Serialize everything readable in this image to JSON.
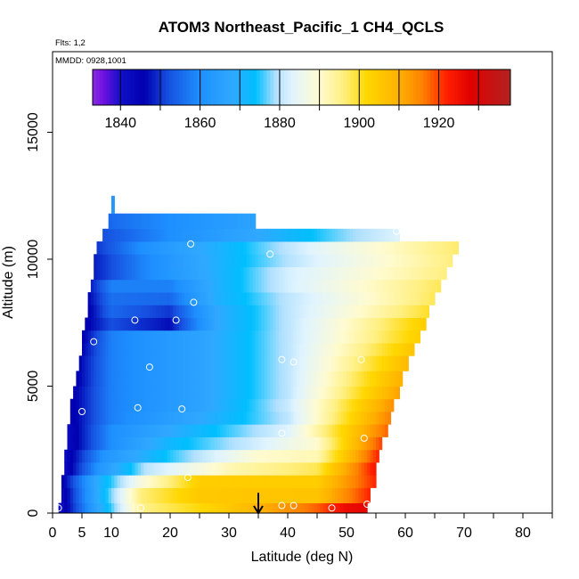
{
  "chart_data": {
    "type": "heatmap",
    "title": "ATOM3 Northeast_Pacific_1 CH4_QCLS",
    "flights_label": "Flts: 1,2",
    "dates_label": "MMDD: 0928,1001",
    "xlabel": "Latitude (deg N)",
    "ylabel": "Altitude (m)",
    "xlim": [
      0,
      85
    ],
    "ylim": [
      0,
      18000
    ],
    "x_ticks": [
      0,
      5,
      10,
      20,
      30,
      40,
      50,
      60,
      70,
      80
    ],
    "y_ticks": [
      0,
      5000,
      10000,
      15000
    ],
    "colorbar": {
      "ticks": [
        1840,
        1860,
        1880,
        1900,
        1920
      ],
      "range": [
        1833,
        1938
      ],
      "bins": [
        1833,
        1840,
        1850,
        1860,
        1870,
        1880,
        1890,
        1900,
        1910,
        1920,
        1930,
        1938
      ]
    },
    "colormap": [
      {
        "v": 1833,
        "c": "#8a2be2"
      },
      {
        "v": 1836,
        "c": "#6a10e0"
      },
      {
        "v": 1840,
        "c": "#1010c8"
      },
      {
        "v": 1846,
        "c": "#0000b0"
      },
      {
        "v": 1852,
        "c": "#1650e0"
      },
      {
        "v": 1860,
        "c": "#1e90ff"
      },
      {
        "v": 1868,
        "c": "#30a8ff"
      },
      {
        "v": 1874,
        "c": "#00bfff"
      },
      {
        "v": 1879,
        "c": "#b0e0ff"
      },
      {
        "v": 1883,
        "c": "#e0f4ff"
      },
      {
        "v": 1890,
        "c": "#fffbd0"
      },
      {
        "v": 1896,
        "c": "#ffef80"
      },
      {
        "v": 1902,
        "c": "#ffd700"
      },
      {
        "v": 1910,
        "c": "#ffb000"
      },
      {
        "v": 1916,
        "c": "#ff8000"
      },
      {
        "v": 1922,
        "c": "#ff2000"
      },
      {
        "v": 1928,
        "c": "#e00000"
      },
      {
        "v": 1938,
        "c": "#b22222"
      }
    ],
    "curtain_bands": [
      {
        "alt_bottom": 0,
        "alt_top": 400,
        "x_start": 1,
        "x_end": 53.5,
        "lat_ctrl": [
          1,
          8,
          15,
          30,
          45,
          50,
          53.5
        ],
        "ctrl": [
          1840,
          1868,
          1895,
          1905,
          1918,
          1926,
          1927
        ]
      },
      {
        "alt_bottom": 400,
        "alt_top": 1000,
        "x_start": 1.5,
        "x_end": 54,
        "lat_ctrl": [
          1.5,
          8,
          15,
          25,
          45,
          54
        ],
        "ctrl": [
          1842,
          1870,
          1896,
          1905,
          1906,
          1922
        ]
      },
      {
        "alt_bottom": 1000,
        "alt_top": 1500,
        "x_start": 1.5,
        "x_end": 55,
        "lat_ctrl": [
          1.5,
          8,
          15,
          25,
          45,
          55
        ],
        "ctrl": [
          1844,
          1870,
          1888,
          1904,
          1904,
          1922
        ]
      },
      {
        "alt_bottom": 1500,
        "alt_top": 2000,
        "x_start": 2,
        "x_end": 55,
        "lat_ctrl": [
          2,
          8,
          16,
          30,
          45,
          55
        ],
        "ctrl": [
          1842,
          1862,
          1880,
          1892,
          1898,
          1924
        ]
      },
      {
        "alt_bottom": 2000,
        "alt_top": 2500,
        "x_start": 2,
        "x_end": 55.5,
        "lat_ctrl": [
          2,
          9,
          20,
          35,
          45,
          55.5
        ],
        "ctrl": [
          1842,
          1862,
          1875,
          1890,
          1892,
          1922
        ]
      },
      {
        "alt_bottom": 2500,
        "alt_top": 3000,
        "x_start": 2.5,
        "x_end": 56,
        "lat_ctrl": [
          2.5,
          10,
          20,
          35,
          45,
          56
        ],
        "ctrl": [
          1842,
          1860,
          1872,
          1882,
          1890,
          1920
        ]
      },
      {
        "alt_bottom": 3000,
        "alt_top": 3500,
        "x_start": 2.5,
        "x_end": 57,
        "lat_ctrl": [
          2.5,
          10,
          25,
          40,
          57
        ],
        "ctrl": [
          1842,
          1860,
          1872,
          1883,
          1918
        ]
      },
      {
        "alt_bottom": 3500,
        "alt_top": 4000,
        "x_start": 3,
        "x_end": 57.5,
        "lat_ctrl": [
          3,
          10,
          25,
          40,
          57.5
        ],
        "ctrl": [
          1844,
          1858,
          1868,
          1880,
          1916
        ]
      },
      {
        "alt_bottom": 4000,
        "alt_top": 4500,
        "x_start": 3,
        "x_end": 58,
        "lat_ctrl": [
          3,
          10,
          25,
          40,
          58
        ],
        "ctrl": [
          1844,
          1858,
          1866,
          1881,
          1914
        ]
      },
      {
        "alt_bottom": 4500,
        "alt_top": 5000,
        "x_start": 3.5,
        "x_end": 59,
        "lat_ctrl": [
          3.5,
          10,
          25,
          40,
          59
        ],
        "ctrl": [
          1845,
          1858,
          1866,
          1880,
          1912
        ]
      },
      {
        "alt_bottom": 5000,
        "alt_top": 5600,
        "x_start": 4,
        "x_end": 59.5,
        "lat_ctrl": [
          4,
          10,
          25,
          40,
          59.5
        ],
        "ctrl": [
          1845,
          1858,
          1866,
          1880,
          1910
        ]
      },
      {
        "alt_bottom": 5600,
        "alt_top": 6200,
        "x_start": 4.5,
        "x_end": 60.5,
        "lat_ctrl": [
          4.5,
          10,
          25,
          40,
          60.5
        ],
        "ctrl": [
          1846,
          1858,
          1866,
          1880,
          1908
        ]
      },
      {
        "alt_bottom": 6200,
        "alt_top": 6700,
        "x_start": 5,
        "x_end": 61.5,
        "lat_ctrl": [
          5,
          10,
          25,
          40,
          61.5
        ],
        "ctrl": [
          1846,
          1858,
          1866,
          1880,
          1906
        ]
      },
      {
        "alt_bottom": 6700,
        "alt_top": 7200,
        "x_start": 5,
        "x_end": 62.5,
        "lat_ctrl": [
          5,
          10,
          25,
          40,
          62.5
        ],
        "ctrl": [
          1845,
          1858,
          1866,
          1880,
          1904
        ]
      },
      {
        "alt_bottom": 7200,
        "alt_top": 7700,
        "x_start": 5.5,
        "x_end": 63.5,
        "lat_ctrl": [
          5.5,
          10,
          20,
          28,
          40,
          63.5
        ],
        "ctrl": [
          1845,
          1852,
          1847,
          1868,
          1880,
          1904
        ]
      },
      {
        "alt_bottom": 7700,
        "alt_top": 8200,
        "x_start": 6,
        "x_end": 64,
        "lat_ctrl": [
          6,
          10,
          20,
          28,
          40,
          64
        ],
        "ctrl": [
          1845,
          1855,
          1850,
          1868,
          1880,
          1900
        ]
      },
      {
        "alt_bottom": 8200,
        "alt_top": 8700,
        "x_start": 6,
        "x_end": 65,
        "lat_ctrl": [
          6,
          10,
          20,
          28,
          40,
          65
        ],
        "ctrl": [
          1846,
          1856,
          1855,
          1870,
          1880,
          1898
        ]
      },
      {
        "alt_bottom": 8700,
        "alt_top": 9200,
        "x_start": 6.5,
        "x_end": 66,
        "lat_ctrl": [
          6.5,
          10,
          20,
          28,
          40,
          66
        ],
        "ctrl": [
          1848,
          1858,
          1858,
          1870,
          1882,
          1898
        ]
      },
      {
        "alt_bottom": 9200,
        "alt_top": 9700,
        "x_start": 7,
        "x_end": 67,
        "lat_ctrl": [
          7,
          15,
          28,
          40,
          67
        ],
        "ctrl": [
          1848,
          1858,
          1870,
          1882,
          1896
        ]
      },
      {
        "alt_bottom": 9700,
        "alt_top": 10200,
        "x_start": 7,
        "x_end": 68,
        "lat_ctrl": [
          7,
          15,
          30,
          45,
          68
        ],
        "ctrl": [
          1848,
          1858,
          1872,
          1883,
          1896
        ]
      },
      {
        "alt_bottom": 10200,
        "alt_top": 10700,
        "x_start": 7.5,
        "x_end": 69,
        "lat_ctrl": [
          7.5,
          15,
          30,
          45,
          69
        ],
        "ctrl": [
          1850,
          1860,
          1872,
          1884,
          1897
        ]
      },
      {
        "alt_bottom": 10700,
        "alt_top": 11200,
        "x_start": 8.5,
        "x_end": 59,
        "lat_ctrl": [
          8.5,
          20,
          35,
          50,
          59
        ],
        "ctrl": [
          1852,
          1860,
          1868,
          1878,
          1883
        ]
      },
      {
        "alt_bottom": 11200,
        "alt_top": 11800,
        "x_start": 9.5,
        "x_end": 34.5,
        "lat_ctrl": [
          9.5,
          20,
          34.5
        ],
        "ctrl": [
          1855,
          1860,
          1866
        ]
      },
      {
        "alt_bottom": 11800,
        "alt_top": 12500,
        "x_start": 10,
        "x_end": 10.5,
        "lat_ctrl": [
          10,
          10.5
        ],
        "ctrl": [
          1862,
          1862
        ]
      }
    ],
    "flight_points": [
      {
        "lat": 1,
        "alt": 200
      },
      {
        "lat": 15,
        "alt": 200
      },
      {
        "lat": 23,
        "alt": 1400
      },
      {
        "lat": 39,
        "alt": 300
      },
      {
        "lat": 41,
        "alt": 300
      },
      {
        "lat": 47.5,
        "alt": 200
      },
      {
        "lat": 53.5,
        "alt": 350
      },
      {
        "lat": 53,
        "alt": 2950
      },
      {
        "lat": 39,
        "alt": 3150
      },
      {
        "lat": 2,
        "alt": 4100
      },
      {
        "lat": 5,
        "alt": 4000
      },
      {
        "lat": 14.5,
        "alt": 4150
      },
      {
        "lat": 22,
        "alt": 4100
      },
      {
        "lat": 16.5,
        "alt": 5750
      },
      {
        "lat": 39,
        "alt": 6050
      },
      {
        "lat": 41,
        "alt": 5950
      },
      {
        "lat": 52.5,
        "alt": 6050
      },
      {
        "lat": 7,
        "alt": 6750
      },
      {
        "lat": 2.5,
        "alt": 7500
      },
      {
        "lat": 4.5,
        "alt": 7600
      },
      {
        "lat": 14,
        "alt": 7600
      },
      {
        "lat": 21,
        "alt": 7600
      },
      {
        "lat": 24,
        "alt": 8300
      },
      {
        "lat": 37,
        "alt": 10200
      },
      {
        "lat": 23.5,
        "alt": 10600
      },
      {
        "lat": 58.5,
        "alt": 11100
      }
    ],
    "arrow_marker": {
      "lat": 35,
      "alt_top": 800,
      "alt_bottom": 0
    }
  }
}
